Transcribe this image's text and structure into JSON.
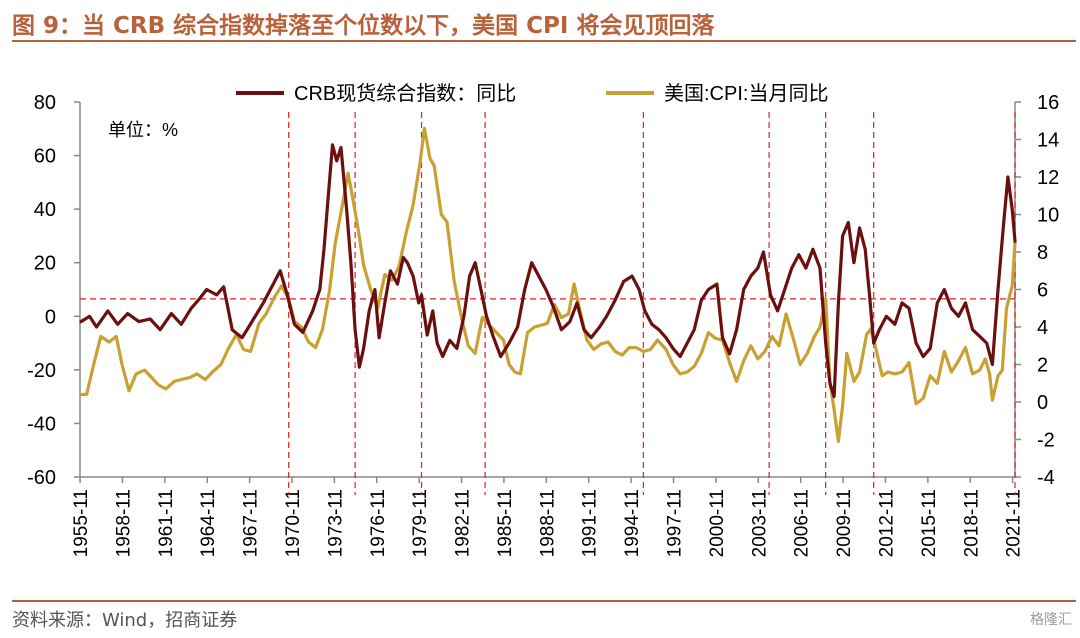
{
  "title": "图 9：当 CRB 综合指数掉落至个位数以下，美国 CPI 将会见顶回落",
  "source": "资料来源：Wind，招商证券",
  "watermark": "格隆汇",
  "colors": {
    "brand": "#b8623b",
    "crb": "#6b0f0f",
    "cpi": "#c9a032",
    "ref": "#e02020"
  },
  "chart_data": {
    "type": "line",
    "unit_label": "单位：%",
    "x_ticks": [
      "1955-11",
      "1958-11",
      "1961-11",
      "1964-11",
      "1967-11",
      "1970-11",
      "1973-11",
      "1976-11",
      "1979-11",
      "1982-11",
      "1985-11",
      "1988-11",
      "1991-11",
      "1994-11",
      "1997-11",
      "2000-11",
      "2003-11",
      "2006-11",
      "2009-11",
      "2012-11",
      "2015-11",
      "2018-11",
      "2021-11"
    ],
    "xlim": [
      1955.83,
      2022.0
    ],
    "y_left": {
      "lim": [
        -60,
        80
      ],
      "ticks": [
        -60,
        -40,
        -20,
        0,
        20,
        40,
        60,
        80
      ]
    },
    "y_right": {
      "lim": [
        -4,
        16
      ],
      "ticks": [
        -4,
        -2,
        0,
        2,
        4,
        6,
        8,
        10,
        12,
        14,
        16
      ]
    },
    "reference_line": {
      "axis": "right",
      "value": 5.5,
      "style": "dashed"
    },
    "event_lines": [
      1970.6,
      1975.3,
      1980.0,
      1984.5,
      1995.7,
      2004.6,
      2008.6,
      2012.0,
      2022.0
    ],
    "series": [
      {
        "name": "CRB现货综合指数：同比",
        "axis": "left",
        "points": [
          [
            1955.9,
            -2
          ],
          [
            1956.5,
            0
          ],
          [
            1957.0,
            -4
          ],
          [
            1957.8,
            2
          ],
          [
            1958.5,
            -3
          ],
          [
            1959.2,
            1
          ],
          [
            1960.0,
            -2
          ],
          [
            1960.8,
            -1
          ],
          [
            1961.5,
            -5
          ],
          [
            1962.3,
            1
          ],
          [
            1963.0,
            -3
          ],
          [
            1963.7,
            3
          ],
          [
            1964.2,
            6
          ],
          [
            1964.8,
            10
          ],
          [
            1965.5,
            8
          ],
          [
            1966.0,
            11
          ],
          [
            1966.6,
            -5
          ],
          [
            1967.3,
            -8
          ],
          [
            1968.0,
            -2
          ],
          [
            1968.8,
            5
          ],
          [
            1969.5,
            12
          ],
          [
            1970.0,
            17
          ],
          [
            1970.5,
            8
          ],
          [
            1971.0,
            -3
          ],
          [
            1971.6,
            -6
          ],
          [
            1972.3,
            2
          ],
          [
            1972.8,
            10
          ],
          [
            1973.1,
            25
          ],
          [
            1973.4,
            45
          ],
          [
            1973.7,
            64
          ],
          [
            1974.0,
            58
          ],
          [
            1974.3,
            63
          ],
          [
            1974.7,
            40
          ],
          [
            1975.0,
            20
          ],
          [
            1975.3,
            -5
          ],
          [
            1975.6,
            -19
          ],
          [
            1975.9,
            -12
          ],
          [
            1976.3,
            2
          ],
          [
            1976.7,
            10
          ],
          [
            1977.0,
            -8
          ],
          [
            1977.4,
            5
          ],
          [
            1977.8,
            17
          ],
          [
            1978.3,
            12
          ],
          [
            1978.7,
            22
          ],
          [
            1979.0,
            20
          ],
          [
            1979.4,
            15
          ],
          [
            1979.8,
            5
          ],
          [
            1980.0,
            8
          ],
          [
            1980.4,
            -7
          ],
          [
            1980.8,
            2
          ],
          [
            1981.1,
            -10
          ],
          [
            1981.5,
            -15
          ],
          [
            1982.0,
            -9
          ],
          [
            1982.5,
            -12
          ],
          [
            1983.0,
            0
          ],
          [
            1983.4,
            15
          ],
          [
            1983.8,
            20
          ],
          [
            1984.2,
            10
          ],
          [
            1984.6,
            0
          ],
          [
            1985.1,
            -8
          ],
          [
            1985.6,
            -15
          ],
          [
            1986.2,
            -10
          ],
          [
            1986.8,
            -4
          ],
          [
            1987.3,
            10
          ],
          [
            1987.8,
            20
          ],
          [
            1988.3,
            15
          ],
          [
            1988.8,
            10
          ],
          [
            1989.3,
            4
          ],
          [
            1989.9,
            -5
          ],
          [
            1990.5,
            -2
          ],
          [
            1991.0,
            5
          ],
          [
            1991.5,
            -5
          ],
          [
            1992.0,
            -8
          ],
          [
            1992.6,
            -4
          ],
          [
            1993.1,
            0
          ],
          [
            1993.7,
            6
          ],
          [
            1994.3,
            13
          ],
          [
            1994.9,
            15
          ],
          [
            1995.4,
            10
          ],
          [
            1995.8,
            2
          ],
          [
            1996.3,
            -3
          ],
          [
            1996.8,
            -5
          ],
          [
            1997.3,
            -8
          ],
          [
            1997.8,
            -12
          ],
          [
            1998.3,
            -15
          ],
          [
            1998.8,
            -10
          ],
          [
            1999.3,
            -5
          ],
          [
            1999.8,
            6
          ],
          [
            2000.3,
            10
          ],
          [
            2000.9,
            12
          ],
          [
            2001.3,
            -8
          ],
          [
            2001.8,
            -14
          ],
          [
            2002.3,
            -5
          ],
          [
            2002.8,
            10
          ],
          [
            2003.3,
            15
          ],
          [
            2003.8,
            18
          ],
          [
            2004.2,
            24
          ],
          [
            2004.7,
            8
          ],
          [
            2005.2,
            2
          ],
          [
            2005.7,
            10
          ],
          [
            2006.2,
            18
          ],
          [
            2006.7,
            23
          ],
          [
            2007.2,
            18
          ],
          [
            2007.7,
            25
          ],
          [
            2008.2,
            18
          ],
          [
            2008.6,
            -10
          ],
          [
            2008.9,
            -25
          ],
          [
            2009.2,
            -30
          ],
          [
            2009.5,
            5
          ],
          [
            2009.8,
            30
          ],
          [
            2010.2,
            35
          ],
          [
            2010.6,
            20
          ],
          [
            2011.0,
            33
          ],
          [
            2011.4,
            25
          ],
          [
            2011.7,
            8
          ],
          [
            2012.0,
            -10
          ],
          [
            2012.4,
            -5
          ],
          [
            2012.9,
            0
          ],
          [
            2013.5,
            -3
          ],
          [
            2014.0,
            5
          ],
          [
            2014.5,
            3
          ],
          [
            2015.0,
            -10
          ],
          [
            2015.5,
            -15
          ],
          [
            2016.0,
            -12
          ],
          [
            2016.5,
            5
          ],
          [
            2017.0,
            10
          ],
          [
            2017.5,
            3
          ],
          [
            2018.0,
            0
          ],
          [
            2018.5,
            5
          ],
          [
            2019.0,
            -5
          ],
          [
            2019.6,
            -8
          ],
          [
            2020.0,
            -10
          ],
          [
            2020.4,
            -18
          ],
          [
            2020.8,
            10
          ],
          [
            2021.2,
            35
          ],
          [
            2021.5,
            52
          ],
          [
            2021.8,
            40
          ],
          [
            2022.0,
            28
          ]
        ]
      },
      {
        "name": "美国:CPI:当月同比",
        "axis": "right",
        "points": [
          [
            1955.9,
            0.4
          ],
          [
            1956.3,
            0.4
          ],
          [
            1956.8,
            2.0
          ],
          [
            1957.3,
            3.5
          ],
          [
            1957.9,
            3.2
          ],
          [
            1958.4,
            3.5
          ],
          [
            1958.8,
            2.0
          ],
          [
            1959.3,
            0.6
          ],
          [
            1959.8,
            1.5
          ],
          [
            1960.4,
            1.7
          ],
          [
            1960.9,
            1.3
          ],
          [
            1961.4,
            0.9
          ],
          [
            1961.9,
            0.7
          ],
          [
            1962.5,
            1.1
          ],
          [
            1963.0,
            1.2
          ],
          [
            1963.6,
            1.3
          ],
          [
            1964.1,
            1.5
          ],
          [
            1964.7,
            1.2
          ],
          [
            1965.2,
            1.6
          ],
          [
            1965.8,
            2.0
          ],
          [
            1966.3,
            2.8
          ],
          [
            1966.9,
            3.6
          ],
          [
            1967.4,
            2.8
          ],
          [
            1967.9,
            2.7
          ],
          [
            1968.5,
            4.2
          ],
          [
            1969.0,
            4.7
          ],
          [
            1969.6,
            5.6
          ],
          [
            1970.1,
            6.2
          ],
          [
            1970.6,
            5.5
          ],
          [
            1971.0,
            4.3
          ],
          [
            1971.5,
            4.0
          ],
          [
            1972.0,
            3.2
          ],
          [
            1972.5,
            2.9
          ],
          [
            1973.0,
            3.9
          ],
          [
            1973.5,
            6.0
          ],
          [
            1973.9,
            8.5
          ],
          [
            1974.4,
            10.5
          ],
          [
            1974.8,
            12.2
          ],
          [
            1975.1,
            11.0
          ],
          [
            1975.5,
            9.3
          ],
          [
            1975.9,
            7.3
          ],
          [
            1976.4,
            6.0
          ],
          [
            1976.9,
            5.0
          ],
          [
            1977.4,
            6.8
          ],
          [
            1977.9,
            6.5
          ],
          [
            1978.4,
            7.2
          ],
          [
            1978.9,
            9.0
          ],
          [
            1979.4,
            10.5
          ],
          [
            1979.9,
            12.8
          ],
          [
            1980.2,
            14.6
          ],
          [
            1980.6,
            13.0
          ],
          [
            1980.9,
            12.6
          ],
          [
            1981.4,
            10.0
          ],
          [
            1981.8,
            9.6
          ],
          [
            1982.3,
            6.5
          ],
          [
            1982.8,
            4.6
          ],
          [
            1983.3,
            3.0
          ],
          [
            1983.8,
            2.6
          ],
          [
            1984.3,
            4.5
          ],
          [
            1984.8,
            4.1
          ],
          [
            1985.3,
            3.7
          ],
          [
            1985.8,
            3.3
          ],
          [
            1986.2,
            2.0
          ],
          [
            1986.6,
            1.6
          ],
          [
            1987.0,
            1.5
          ],
          [
            1987.5,
            3.7
          ],
          [
            1988.0,
            4.0
          ],
          [
            1988.5,
            4.1
          ],
          [
            1988.9,
            4.2
          ],
          [
            1989.4,
            5.2
          ],
          [
            1989.9,
            4.5
          ],
          [
            1990.4,
            4.7
          ],
          [
            1990.8,
            6.3
          ],
          [
            1991.2,
            4.9
          ],
          [
            1991.7,
            3.3
          ],
          [
            1992.2,
            2.8
          ],
          [
            1992.7,
            3.1
          ],
          [
            1993.2,
            3.2
          ],
          [
            1993.7,
            2.7
          ],
          [
            1994.2,
            2.5
          ],
          [
            1994.7,
            2.9
          ],
          [
            1995.2,
            2.9
          ],
          [
            1995.7,
            2.7
          ],
          [
            1996.2,
            2.8
          ],
          [
            1996.7,
            3.3
          ],
          [
            1997.3,
            2.8
          ],
          [
            1997.8,
            2.0
          ],
          [
            1998.3,
            1.5
          ],
          [
            1998.8,
            1.6
          ],
          [
            1999.3,
            1.9
          ],
          [
            1999.8,
            2.6
          ],
          [
            2000.3,
            3.7
          ],
          [
            2000.8,
            3.4
          ],
          [
            2001.3,
            3.3
          ],
          [
            2001.8,
            2.1
          ],
          [
            2002.3,
            1.1
          ],
          [
            2002.8,
            2.2
          ],
          [
            2003.3,
            3.0
          ],
          [
            2003.8,
            2.3
          ],
          [
            2004.3,
            2.7
          ],
          [
            2004.8,
            3.5
          ],
          [
            2005.3,
            3.0
          ],
          [
            2005.8,
            4.7
          ],
          [
            2006.3,
            3.4
          ],
          [
            2006.8,
            2.0
          ],
          [
            2007.3,
            2.6
          ],
          [
            2007.8,
            3.5
          ],
          [
            2008.2,
            4.0
          ],
          [
            2008.6,
            5.5
          ],
          [
            2008.9,
            1.1
          ],
          [
            2009.2,
            -0.4
          ],
          [
            2009.5,
            -2.1
          ],
          [
            2009.8,
            -0.2
          ],
          [
            2010.1,
            2.6
          ],
          [
            2010.6,
            1.1
          ],
          [
            2011.0,
            1.6
          ],
          [
            2011.5,
            3.6
          ],
          [
            2011.8,
            3.9
          ],
          [
            2012.2,
            2.7
          ],
          [
            2012.6,
            1.4
          ],
          [
            2013.0,
            1.6
          ],
          [
            2013.5,
            1.5
          ],
          [
            2014.0,
            1.6
          ],
          [
            2014.5,
            2.1
          ],
          [
            2015.0,
            -0.1
          ],
          [
            2015.5,
            0.2
          ],
          [
            2016.0,
            1.4
          ],
          [
            2016.5,
            1.0
          ],
          [
            2017.0,
            2.7
          ],
          [
            2017.5,
            1.6
          ],
          [
            2018.0,
            2.2
          ],
          [
            2018.5,
            2.9
          ],
          [
            2019.0,
            1.5
          ],
          [
            2019.5,
            1.7
          ],
          [
            2019.9,
            2.3
          ],
          [
            2020.2,
            1.5
          ],
          [
            2020.4,
            0.1
          ],
          [
            2020.8,
            1.4
          ],
          [
            2021.1,
            1.7
          ],
          [
            2021.4,
            5.0
          ],
          [
            2021.8,
            6.2
          ],
          [
            2022.0,
            8.5
          ]
        ]
      }
    ]
  }
}
